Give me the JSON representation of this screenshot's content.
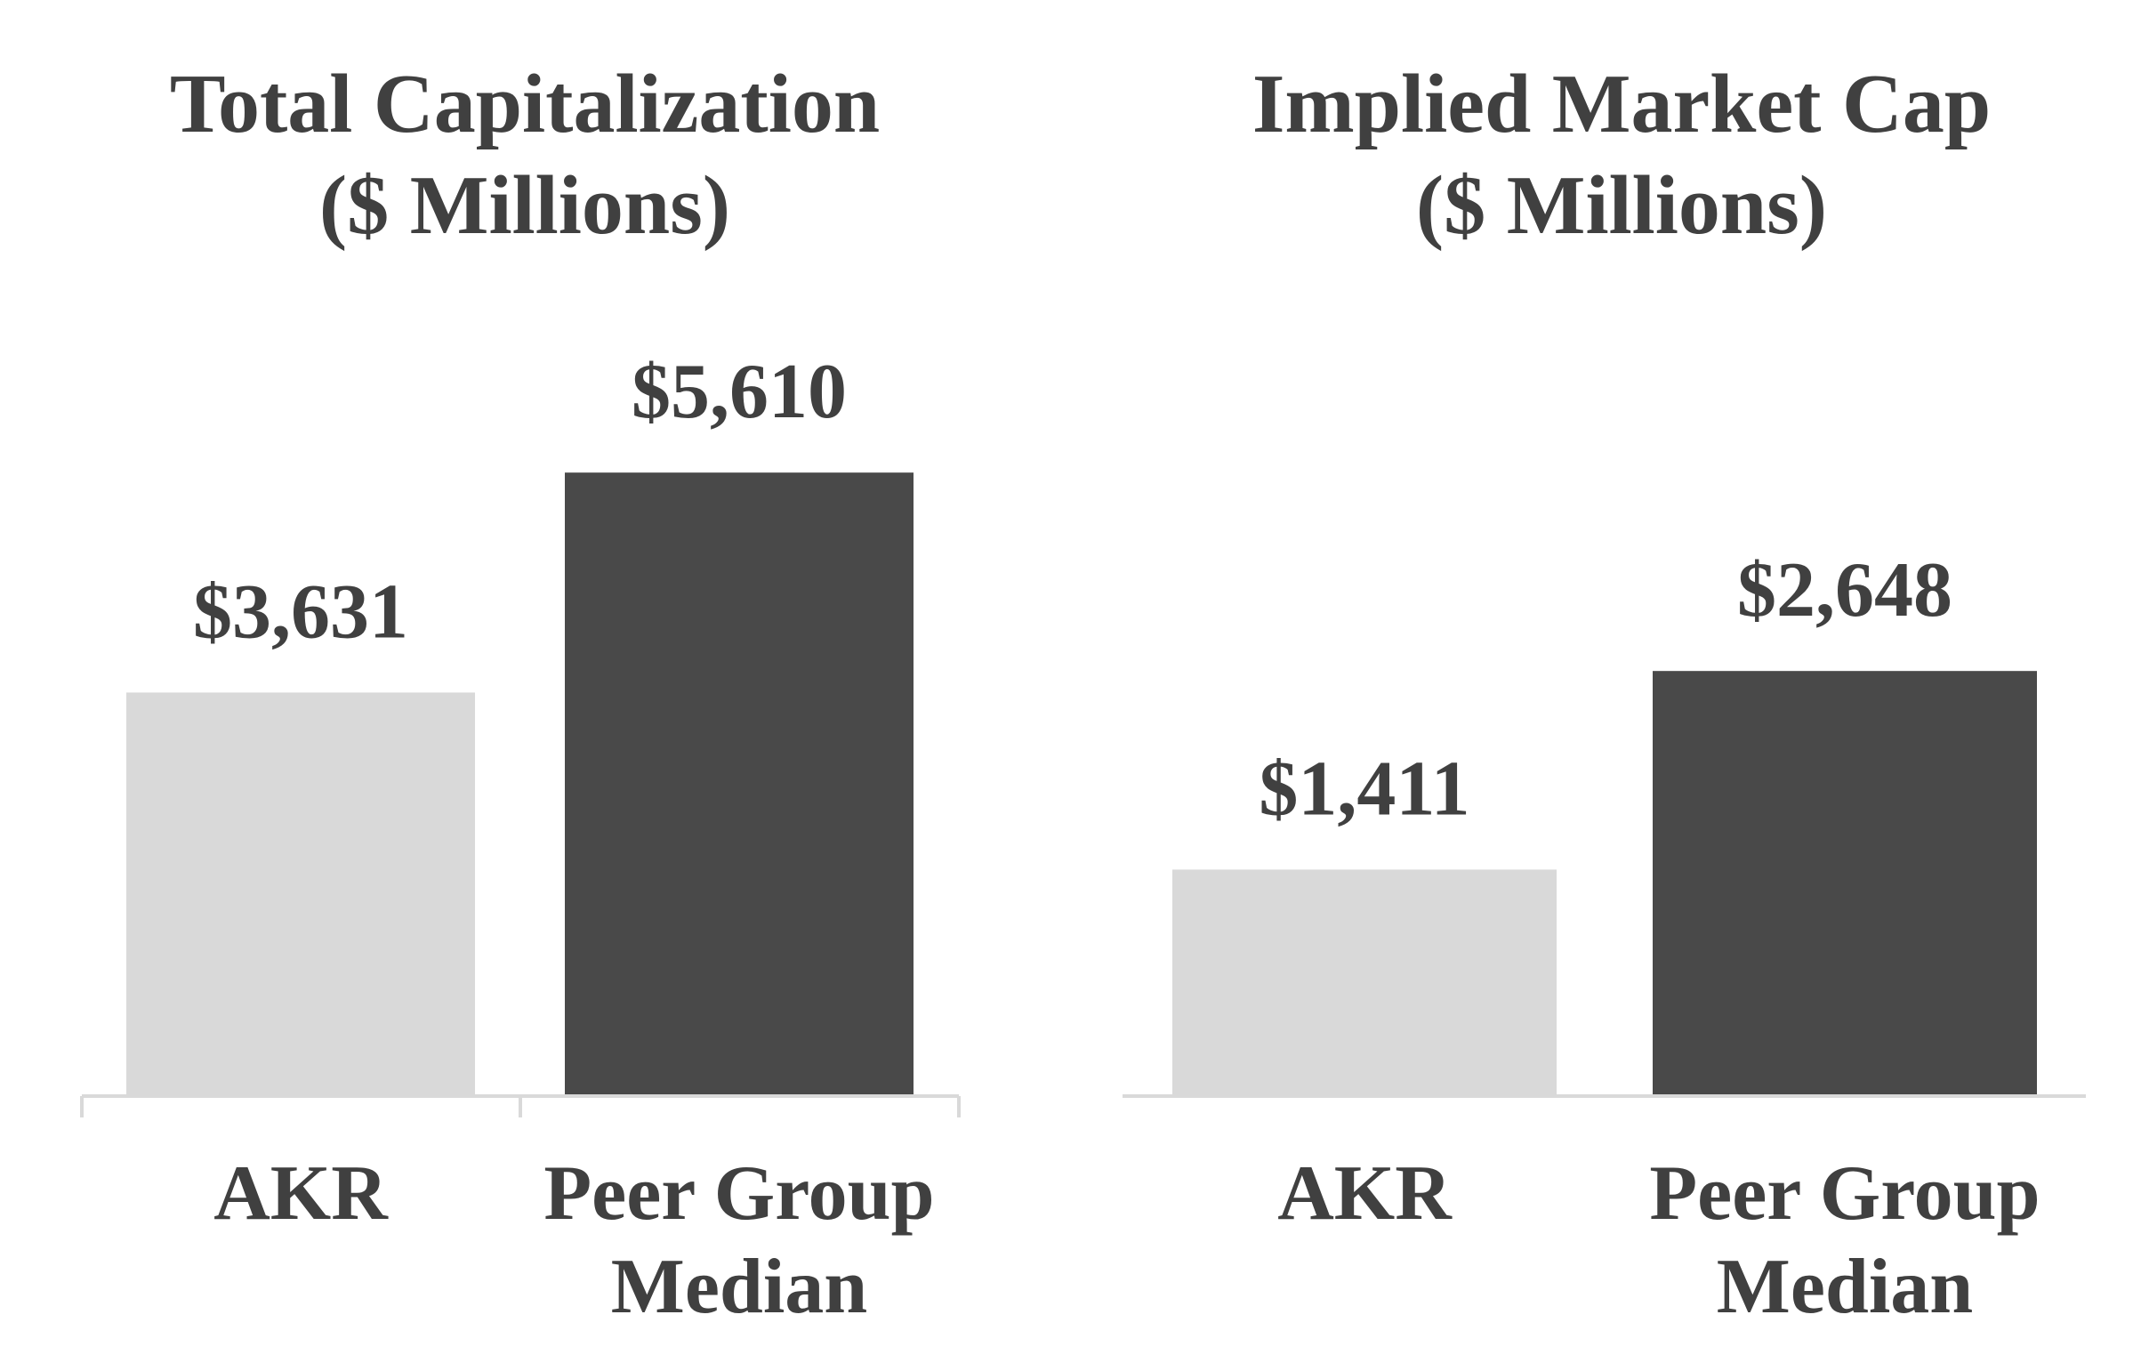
{
  "chart_data": [
    {
      "type": "bar",
      "title": "Total Capitalization",
      "subtitle": "($ Millions)",
      "categories": [
        "AKR",
        "Peer Group Median"
      ],
      "category_lines": [
        [
          "AKR"
        ],
        [
          "Peer Group",
          "Median"
        ]
      ],
      "values": [
        3631,
        5610
      ],
      "value_labels": [
        "$3,631",
        "$5,610"
      ],
      "colors": [
        "#d9d9d9",
        "#494949"
      ],
      "ylim": [
        0,
        6500
      ],
      "grid": false,
      "legend": "none"
    },
    {
      "type": "bar",
      "title": "Implied Market Cap",
      "subtitle": "($ Millions)",
      "categories": [
        "AKR",
        "Peer Group Median"
      ],
      "category_lines": [
        [
          "AKR"
        ],
        [
          "Peer Group",
          "Median"
        ]
      ],
      "values": [
        1411,
        2648
      ],
      "value_labels": [
        "$1,411",
        "$2,648"
      ],
      "colors": [
        "#d9d9d9",
        "#494949"
      ],
      "ylim": [
        0,
        4500
      ],
      "grid": false,
      "legend": "none"
    }
  ]
}
